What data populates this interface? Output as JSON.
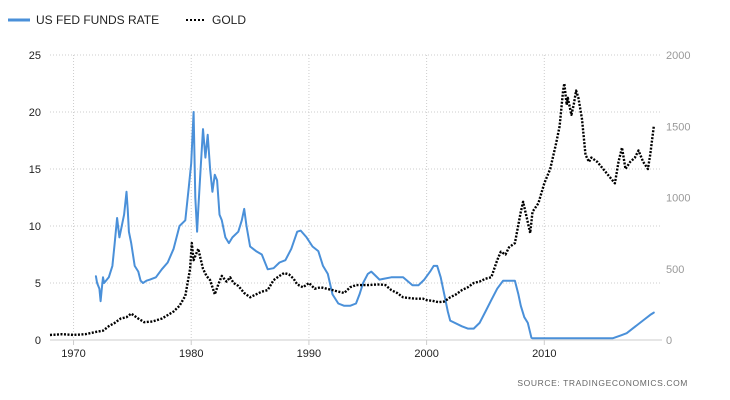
{
  "chart_data": {
    "type": "line",
    "legend": [
      {
        "label": "US FED FUNDS RATE",
        "color": "#4a90d9",
        "style": "solid"
      },
      {
        "label": "GOLD",
        "color": "#000000",
        "style": "dotted"
      }
    ],
    "legend_position": "top-left",
    "source": "SOURCE:   TRADINGECONOMICS.COM",
    "x_ticks": [
      "1970",
      "1980",
      "1990",
      "2000",
      "2010"
    ],
    "xlim": [
      1968,
      2020
    ],
    "y_left": {
      "ticks": [
        "0",
        "5",
        "10",
        "15",
        "20",
        "25"
      ],
      "ylim": [
        0,
        25
      ],
      "color": "#222222"
    },
    "y_right": {
      "ticks": [
        "0",
        "500",
        "1000",
        "1500",
        "2000"
      ],
      "ylim": [
        0,
        2000
      ],
      "color": "#999999"
    },
    "grid": true,
    "series": [
      {
        "name": "US FED FUNDS RATE",
        "axis": "left",
        "color": "#4a90d9",
        "x": [
          1971.9,
          1972.0,
          1972.2,
          1972.3,
          1972.4,
          1972.5,
          1972.6,
          1973.0,
          1973.3,
          1973.5,
          1973.7,
          1973.9,
          1974.0,
          1974.3,
          1974.5,
          1974.6,
          1974.7,
          1974.9,
          1975.2,
          1975.5,
          1975.7,
          1975.9,
          1976.2,
          1976.5,
          1977.0,
          1977.5,
          1978.0,
          1978.5,
          1979.0,
          1979.5,
          1979.8,
          1980.0,
          1980.2,
          1980.35,
          1980.5,
          1980.6,
          1980.8,
          1981.0,
          1981.2,
          1981.4,
          1981.6,
          1981.8,
          1982.0,
          1982.2,
          1982.4,
          1982.6,
          1982.9,
          1983.2,
          1983.5,
          1984.0,
          1984.3,
          1984.5,
          1984.7,
          1985.0,
          1985.5,
          1986.0,
          1986.5,
          1987.0,
          1987.5,
          1988.0,
          1988.5,
          1989.0,
          1989.3,
          1989.8,
          1990.3,
          1990.8,
          1991.2,
          1991.6,
          1992.0,
          1992.5,
          1993.0,
          1993.5,
          1994.0,
          1994.3,
          1994.6,
          1995.0,
          1995.3,
          1995.6,
          1996.0,
          1997.0,
          1998.0,
          1998.8,
          1999.3,
          1999.8,
          2000.3,
          2000.6,
          2000.9,
          2001.2,
          2001.5,
          2001.8,
          2002.0,
          2003.0,
          2003.5,
          2004.0,
          2004.5,
          2005.0,
          2005.5,
          2006.0,
          2006.5,
          2007.0,
          2007.5,
          2007.8,
          2008.0,
          2008.3,
          2008.6,
          2008.9,
          2009.0,
          2015.8,
          2016.5,
          2017.0,
          2017.5,
          2018.0,
          2018.5,
          2019.0,
          2019.3
        ],
        "y": [
          5.6,
          5.0,
          4.5,
          3.4,
          4.5,
          5.5,
          5.0,
          5.5,
          6.5,
          8.5,
          10.7,
          9.0,
          9.5,
          11.0,
          13.0,
          11.5,
          9.5,
          8.5,
          6.5,
          6.0,
          5.2,
          5.0,
          5.2,
          5.3,
          5.5,
          6.2,
          6.8,
          8.0,
          10.0,
          10.5,
          13.5,
          15.5,
          20.0,
          12.5,
          9.5,
          11.5,
          15.0,
          18.5,
          16.0,
          18.0,
          15.0,
          13.0,
          14.5,
          14.0,
          11.0,
          10.5,
          9.0,
          8.5,
          9.0,
          9.5,
          10.5,
          11.5,
          10.0,
          8.2,
          7.8,
          7.5,
          6.2,
          6.3,
          6.8,
          7.0,
          8.0,
          9.5,
          9.6,
          9.0,
          8.2,
          7.8,
          6.5,
          5.8,
          4.0,
          3.2,
          3.0,
          3.0,
          3.2,
          4.0,
          5.0,
          5.8,
          6.0,
          5.7,
          5.3,
          5.5,
          5.5,
          4.8,
          4.8,
          5.3,
          6.0,
          6.5,
          6.5,
          5.5,
          4.0,
          2.5,
          1.7,
          1.2,
          1.0,
          1.0,
          1.5,
          2.5,
          3.5,
          4.5,
          5.2,
          5.2,
          5.2,
          4.0,
          3.0,
          2.0,
          1.5,
          0.2,
          0.15,
          0.15,
          0.4,
          0.6,
          1.0,
          1.4,
          1.8,
          2.2,
          2.4
        ],
        "style": "solid"
      },
      {
        "name": "GOLD",
        "axis": "right",
        "color": "#000000",
        "x": [
          1968.0,
          1969.0,
          1970.0,
          1971.0,
          1972.0,
          1972.5,
          1973.0,
          1973.5,
          1974.0,
          1974.5,
          1974.9,
          1975.5,
          1976.0,
          1976.7,
          1977.5,
          1978.0,
          1978.5,
          1979.0,
          1979.5,
          1979.9,
          1980.05,
          1980.2,
          1980.4,
          1980.6,
          1980.8,
          1981.0,
          1981.3,
          1981.6,
          1982.0,
          1982.3,
          1982.6,
          1983.0,
          1983.3,
          1983.6,
          1984.0,
          1984.5,
          1985.0,
          1985.5,
          1986.0,
          1986.5,
          1987.0,
          1987.5,
          1987.9,
          1988.3,
          1988.7,
          1989.0,
          1989.5,
          1990.0,
          1990.5,
          1991.0,
          1991.5,
          1992.0,
          1992.5,
          1993.0,
          1993.5,
          1994.0,
          1995.0,
          1996.0,
          1996.5,
          1997.0,
          1997.5,
          1998.0,
          1999.0,
          1999.7,
          2000.0,
          2000.5,
          2001.0,
          2001.5,
          2002.0,
          2002.5,
          2003.0,
          2003.5,
          2004.0,
          2004.5,
          2005.0,
          2005.5,
          2006.0,
          2006.3,
          2006.7,
          2007.0,
          2007.5,
          2008.0,
          2008.2,
          2008.5,
          2008.8,
          2009.0,
          2009.5,
          2010.0,
          2010.5,
          2011.0,
          2011.3,
          2011.6,
          2011.7,
          2011.9,
          2012.0,
          2012.3,
          2012.5,
          2012.7,
          2012.9,
          2013.2,
          2013.5,
          2013.8,
          2014.0,
          2014.5,
          2015.0,
          2015.5,
          2016.0,
          2016.3,
          2016.6,
          2016.9,
          2017.3,
          2017.7,
          2018.0,
          2018.4,
          2018.8,
          2019.0,
          2019.3
        ],
        "y": [
          35,
          41,
          36,
          41,
          58,
          65,
          97,
          120,
          150,
          160,
          185,
          150,
          125,
          130,
          150,
          175,
          200,
          240,
          310,
          500,
          680,
          560,
          600,
          640,
          570,
          500,
          450,
          420,
          320,
          390,
          450,
          410,
          440,
          400,
          380,
          330,
          300,
          320,
          340,
          350,
          420,
          450,
          470,
          460,
          430,
          390,
          370,
          400,
          360,
          370,
          360,
          350,
          340,
          330,
          370,
          385,
          385,
          390,
          385,
          350,
          330,
          300,
          290,
          290,
          280,
          275,
          265,
          270,
          300,
          320,
          350,
          370,
          400,
          410,
          430,
          440,
          560,
          620,
          600,
          650,
          680,
          900,
          970,
          860,
          750,
          900,
          960,
          1100,
          1200,
          1380,
          1500,
          1750,
          1800,
          1650,
          1700,
          1580,
          1650,
          1750,
          1700,
          1550,
          1300,
          1250,
          1280,
          1250,
          1200,
          1150,
          1100,
          1250,
          1350,
          1200,
          1250,
          1280,
          1330,
          1250,
          1200,
          1300,
          1500
        ],
        "style": "dotted"
      }
    ]
  }
}
